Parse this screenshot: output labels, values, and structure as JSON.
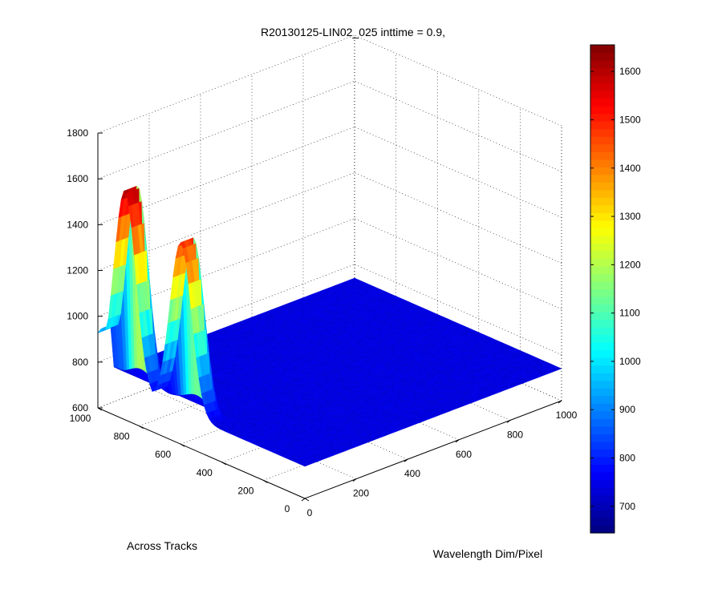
{
  "chart_data": {
    "type": "surface",
    "title": "R20130125-LIN02_025 inttime = 0.9,",
    "xlabel": "Wavelength Dim/Pixel",
    "ylabel": "Across Tracks",
    "zlabel": "",
    "xlim": [
      0,
      1000
    ],
    "ylim": [
      0,
      1000
    ],
    "zlim": [
      600,
      1800
    ],
    "x_ticks": [
      "0",
      "200",
      "400",
      "600",
      "800",
      "1000"
    ],
    "y_ticks": [
      "0",
      "200",
      "400",
      "600",
      "800",
      "1000"
    ],
    "z_ticks": [
      "600",
      "800",
      "1000",
      "1200",
      "1400",
      "1600",
      "1800"
    ],
    "grid": true,
    "colormap": "jet",
    "clim": [
      645,
      1655
    ],
    "colorbar_ticks": [
      "700",
      "800",
      "900",
      "1000",
      "1100",
      "1200",
      "1300",
      "1400",
      "1500",
      "1600"
    ],
    "baseline_value": 740,
    "peaks": [
      {
        "y_center": 870,
        "x_range": [
          0,
          55
        ],
        "max": 1600
      },
      {
        "y_center": 600,
        "x_range": [
          0,
          55
        ],
        "max": 1480
      },
      {
        "y_center": 970,
        "x_range": [
          0,
          55
        ],
        "max": 960
      }
    ]
  }
}
